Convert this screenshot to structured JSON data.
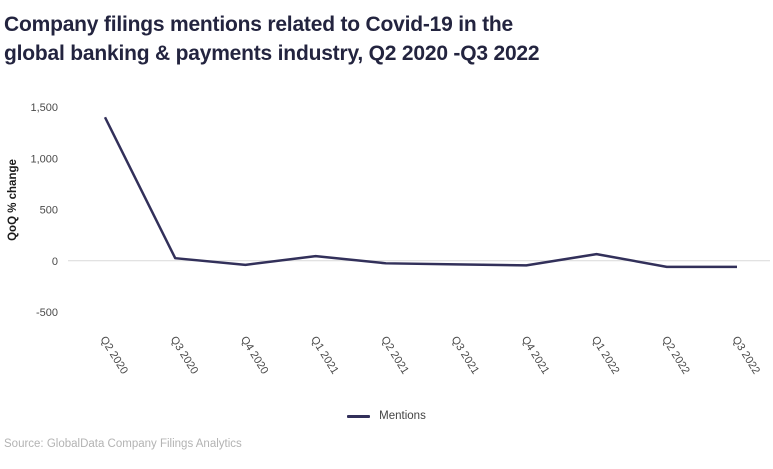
{
  "title": {
    "line1": "Company filings mentions related to Covid-19 in the",
    "line2": "global banking & payments industry, Q2 2020 -Q3 2022"
  },
  "chart_data": {
    "type": "line",
    "title": "Company filings mentions related to Covid-19 in the global banking & payments industry, Q2 2020 -Q3 2022",
    "categories": [
      "Q2 2020",
      "Q3 2020",
      "Q4 2020",
      "Q1 2021",
      "Q2 2021",
      "Q3 2021",
      "Q4 2021",
      "Q1 2022",
      "Q2 2022",
      "Q3 2022"
    ],
    "series": [
      {
        "name": "Mentions",
        "values": [
          1400,
          25,
          -40,
          45,
          -25,
          -35,
          -45,
          65,
          -60,
          -60
        ]
      }
    ],
    "xlabel": "",
    "ylabel": "QoQ % change",
    "ylim": [
      -500,
      1500
    ],
    "yticks": [
      1500,
      1000,
      500,
      0,
      -500
    ],
    "grid": "zero-baseline-only",
    "legend_position": "bottom-center",
    "colors": {
      "line": "#32305a",
      "gridline": "#d9d9d9",
      "title_text": "#23243f",
      "axis_text": "#4a4a4a",
      "y_axis_title_text": "#1a1a1a",
      "legend_text": "#444444",
      "source_text": "#b3b3b3"
    }
  },
  "legend": {
    "items": [
      {
        "label": "Mentions",
        "color": "#32305a"
      }
    ]
  },
  "footer": {
    "source": "Source: GlobalData Company Filings Analytics"
  }
}
